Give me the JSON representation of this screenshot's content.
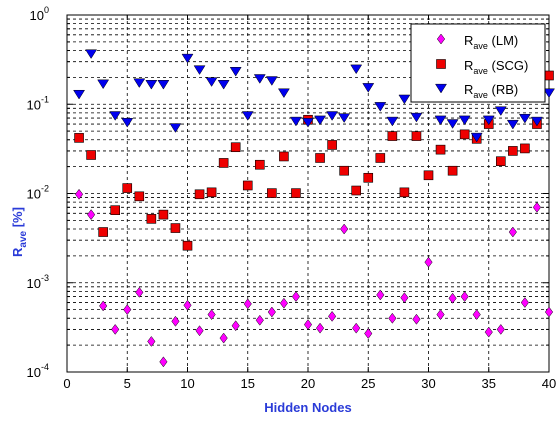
{
  "chart_data": {
    "type": "scatter",
    "xlabel": "Hidden Nodes",
    "ylabel_main": "R",
    "ylabel_sub": "ave",
    "ylabel_tail": " [%]",
    "xlim": [
      0,
      40
    ],
    "ylim": [
      0.0001,
      1
    ],
    "yscale": "log",
    "grid": true,
    "legend_position": "top-right",
    "x_ticks": [
      "0",
      "5",
      "10",
      "15",
      "20",
      "25",
      "30",
      "35",
      "40"
    ],
    "y_ticks": [
      {
        "base": "10",
        "exp": "-4"
      },
      {
        "base": "10",
        "exp": "-3"
      },
      {
        "base": "10",
        "exp": "-2"
      },
      {
        "base": "10",
        "exp": "-1"
      },
      {
        "base": "10",
        "exp": "0"
      }
    ],
    "series": [
      {
        "name_main": "R",
        "name_sub": "ave",
        "name_tail": " (LM)",
        "marker": "diamond",
        "color": "#ff00ff",
        "x": [
          1,
          2,
          3,
          4,
          5,
          6,
          7,
          8,
          9,
          10,
          11,
          12,
          13,
          14,
          15,
          16,
          17,
          18,
          19,
          20,
          21,
          22,
          23,
          24,
          25,
          26,
          27,
          28,
          29,
          30,
          31,
          32,
          33,
          34,
          35,
          36,
          37,
          38,
          39,
          40
        ],
        "y": [
          0.0098,
          0.0058,
          0.00055,
          0.0003,
          0.0005,
          0.00078,
          0.00022,
          0.00013,
          0.00037,
          0.00056,
          0.00029,
          0.00044,
          0.00024,
          0.00033,
          0.00058,
          0.00038,
          0.00047,
          0.00059,
          0.0007,
          0.00034,
          0.00031,
          0.00042,
          0.004,
          0.00031,
          0.00027,
          0.00073,
          0.0004,
          0.00068,
          0.00039,
          0.0017,
          0.00044,
          0.00067,
          0.0007,
          0.00044,
          0.00028,
          0.0003,
          0.0037,
          0.0006,
          0.007,
          0.00047
        ]
      },
      {
        "name_main": "R",
        "name_sub": "ave",
        "name_tail": " (SCG)",
        "marker": "square",
        "color": "#ee0000",
        "x": [
          1,
          2,
          3,
          4,
          5,
          6,
          7,
          8,
          9,
          10,
          11,
          12,
          13,
          14,
          15,
          16,
          17,
          18,
          19,
          20,
          21,
          22,
          23,
          24,
          25,
          26,
          27,
          28,
          29,
          30,
          31,
          32,
          33,
          34,
          35,
          36,
          37,
          38,
          39,
          40
        ],
        "y": [
          0.042,
          0.027,
          0.0037,
          0.0065,
          0.0115,
          0.0093,
          0.0052,
          0.0058,
          0.0041,
          0.0026,
          0.0098,
          0.0103,
          0.022,
          0.033,
          0.0123,
          0.021,
          0.0101,
          0.026,
          0.0101,
          0.067,
          0.025,
          0.035,
          0.018,
          0.0108,
          0.015,
          0.025,
          0.044,
          0.0103,
          0.044,
          0.016,
          0.031,
          0.018,
          0.046,
          0.041,
          0.06,
          0.023,
          0.03,
          0.032,
          0.06,
          0.21
        ]
      },
      {
        "name_main": "R",
        "name_sub": "ave",
        "name_tail": " (RB)",
        "marker": "triangle-down",
        "color": "#0000ee",
        "x": [
          1,
          2,
          3,
          4,
          5,
          6,
          7,
          8,
          9,
          10,
          11,
          12,
          13,
          14,
          15,
          16,
          17,
          18,
          19,
          20,
          21,
          22,
          23,
          24,
          25,
          26,
          27,
          28,
          29,
          30,
          31,
          32,
          33,
          34,
          35,
          36,
          37,
          38,
          39,
          40
        ],
        "y": [
          0.13,
          0.37,
          0.17,
          0.075,
          0.063,
          0.175,
          0.168,
          0.168,
          0.055,
          0.33,
          0.245,
          0.18,
          0.168,
          0.235,
          0.075,
          0.195,
          0.185,
          0.135,
          0.065,
          0.063,
          0.067,
          0.075,
          0.071,
          0.25,
          0.155,
          0.095,
          0.065,
          0.115,
          0.072,
          0.135,
          0.067,
          0.061,
          0.067,
          0.043,
          0.067,
          0.085,
          0.06,
          0.07,
          0.065,
          0.135
        ]
      }
    ]
  }
}
